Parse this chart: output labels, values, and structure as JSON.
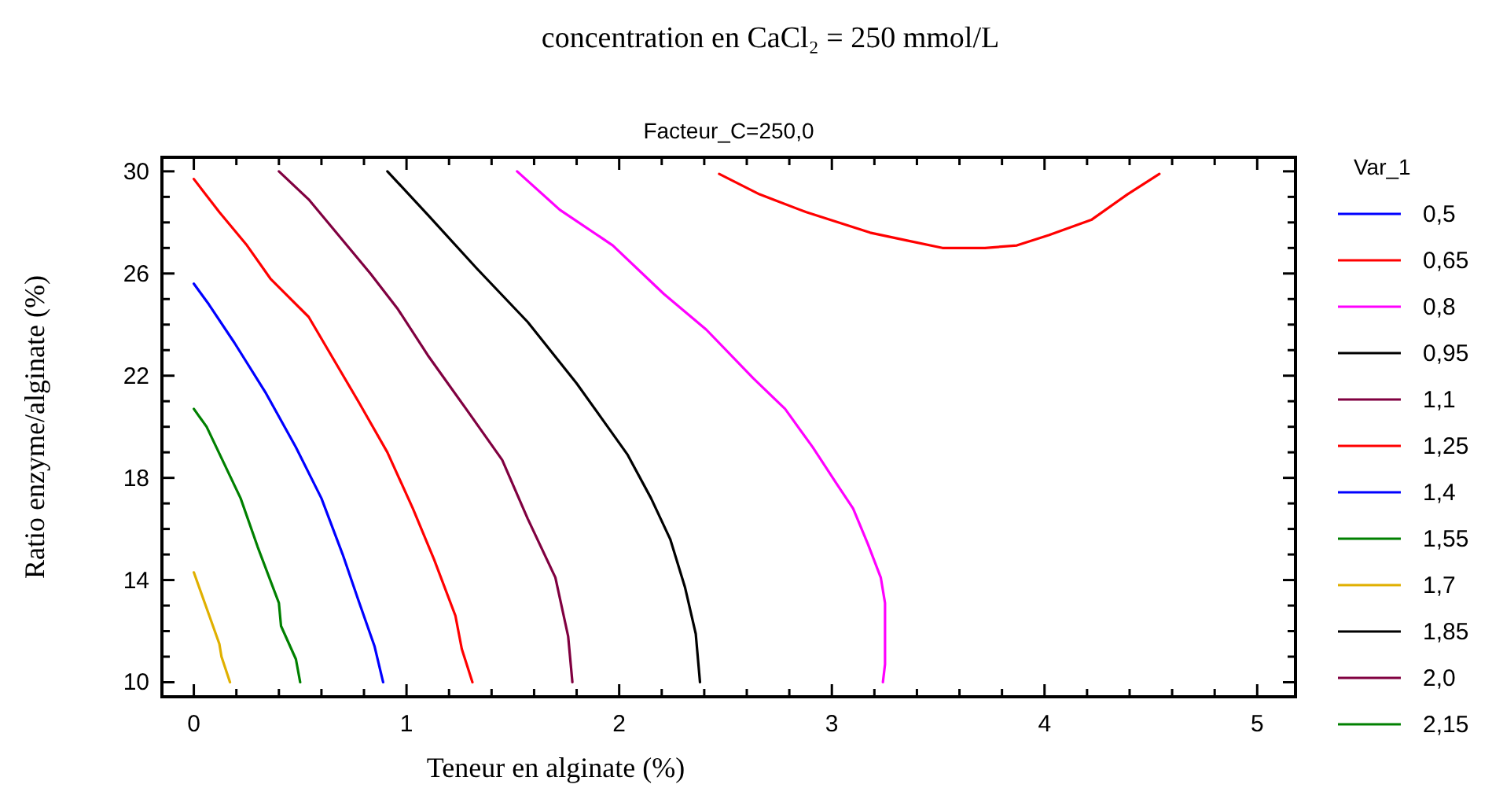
{
  "chart_data": {
    "type": "line",
    "title": "concentration en CaCl₂ = 250 mmol/L",
    "subtitle": "Facteur_C=250,0",
    "xlabel": "Teneur en alginate (%)",
    "ylabel": "Ratio enzyme/alginate (%)",
    "legend_title": "Var_1",
    "legend": "right",
    "grid": false,
    "marker": "none",
    "line_style": "solid",
    "xlim": [
      -0.15,
      5.18
    ],
    "ylim": [
      9.43,
      30.55
    ],
    "xticks": [
      0,
      {
        "value": 0.2,
        "label": null
      },
      {
        "value": 0.4,
        "label": null
      },
      {
        "value": 0.6,
        "label": null
      },
      {
        "value": 0.8,
        "label": null
      },
      1,
      {
        "value": 1.2,
        "label": null
      },
      {
        "value": 1.4,
        "label": null
      },
      {
        "value": 1.6,
        "label": null
      },
      {
        "value": 1.8,
        "label": null
      },
      2,
      {
        "value": 2.2,
        "label": null
      },
      {
        "value": 2.4,
        "label": null
      },
      {
        "value": 2.6,
        "label": null
      },
      {
        "value": 2.8,
        "label": null
      },
      3,
      {
        "value": 3.2,
        "label": null
      },
      {
        "value": 3.4,
        "label": null
      },
      {
        "value": 3.6,
        "label": null
      },
      {
        "value": 3.8,
        "label": null
      },
      4,
      {
        "value": 4.2,
        "label": null
      },
      {
        "value": 4.4,
        "label": null
      },
      {
        "value": 4.6,
        "label": null
      },
      {
        "value": 4.8,
        "label": null
      },
      5
    ],
    "yticks": [
      10,
      {
        "value": 11,
        "label": null
      },
      {
        "value": 12,
        "label": null
      },
      {
        "value": 13,
        "label": null
      },
      14,
      {
        "value": 15,
        "label": null
      },
      {
        "value": 16,
        "label": null
      },
      {
        "value": 17,
        "label": null
      },
      18,
      {
        "value": 19,
        "label": null
      },
      {
        "value": 20,
        "label": null
      },
      {
        "value": 21,
        "label": null
      },
      22,
      {
        "value": 23,
        "label": null
      },
      {
        "value": 24,
        "label": null
      },
      {
        "value": 25,
        "label": null
      },
      26,
      {
        "value": 27,
        "label": null
      },
      {
        "value": 28,
        "label": null
      },
      {
        "value": 29,
        "label": null
      },
      30
    ],
    "series": [
      {
        "name": "0,5",
        "color": "#0000ff"
      },
      {
        "name": "0,65",
        "color": "#ff0000",
        "x": [
          2.47,
          2.66,
          2.88,
          3.18,
          3.35,
          3.52,
          3.72,
          3.87,
          4.02,
          4.22,
          4.39,
          4.54
        ],
        "values": [
          29.9,
          29.1,
          28.4,
          27.6,
          27.3,
          27.0,
          27.0,
          27.1,
          27.5,
          28.1,
          29.1,
          29.9
        ]
      },
      {
        "name": "0,8",
        "color": "#ff00ff",
        "x": [
          1.52,
          1.72,
          1.97,
          2.21,
          2.41,
          2.63,
          2.78,
          2.91,
          3.02,
          3.1,
          3.17,
          3.23,
          3.25,
          3.25,
          3.24
        ],
        "values": [
          30.0,
          28.5,
          27.1,
          25.2,
          23.8,
          21.9,
          20.7,
          19.2,
          17.8,
          16.8,
          15.4,
          14.1,
          13.1,
          10.7,
          10.0
        ]
      },
      {
        "name": "0,95",
        "color": "#000000",
        "x": [
          0.91,
          1.1,
          1.33,
          1.57,
          1.8,
          1.92,
          2.04,
          2.15,
          2.24,
          2.31,
          2.36,
          2.38
        ],
        "values": [
          30.0,
          28.3,
          26.2,
          24.1,
          21.7,
          20.3,
          18.9,
          17.2,
          15.6,
          13.7,
          11.9,
          10.0
        ]
      },
      {
        "name": "1,1",
        "color": "#800040",
        "x": [
          0.4,
          0.54,
          0.68,
          0.83,
          0.96,
          1.1,
          1.28,
          1.45,
          1.57,
          1.7,
          1.76,
          1.78
        ],
        "values": [
          30.0,
          28.9,
          27.5,
          26.0,
          24.6,
          22.8,
          20.7,
          18.7,
          16.4,
          14.1,
          11.8,
          10.0
        ]
      },
      {
        "name": "1,25",
        "color": "#ff0000",
        "x": [
          0,
          0.12,
          0.25,
          0.36,
          0.54,
          0.66,
          0.78,
          0.91,
          1.03,
          1.13,
          1.23,
          1.26,
          1.31
        ],
        "values": [
          29.7,
          28.4,
          27.1,
          25.8,
          24.3,
          22.6,
          20.9,
          19.0,
          16.8,
          14.8,
          12.6,
          11.3,
          10.0
        ]
      },
      {
        "name": "1,4",
        "color": "#0000ff",
        "x": [
          0,
          0.07,
          0.19,
          0.34,
          0.48,
          0.6,
          0.7,
          0.77,
          0.85,
          0.89
        ],
        "values": [
          25.6,
          24.8,
          23.3,
          21.3,
          19.2,
          17.2,
          15.0,
          13.3,
          11.4,
          10.0
        ]
      },
      {
        "name": "1,55",
        "color": "#008000",
        "x": [
          0,
          0.06,
          0.14,
          0.22,
          0.3,
          0.4,
          0.41,
          0.48,
          0.5
        ],
        "values": [
          20.7,
          20.0,
          18.6,
          17.2,
          15.3,
          13.1,
          12.2,
          10.9,
          10.0
        ]
      },
      {
        "name": "1,7",
        "color": "#e0b000",
        "x": [
          0,
          0.06,
          0.12,
          0.13,
          0.17
        ],
        "values": [
          14.3,
          12.9,
          11.5,
          11.0,
          10.0
        ]
      },
      {
        "name": "1,85",
        "color": "#000000"
      },
      {
        "name": "2,0",
        "color": "#800040"
      },
      {
        "name": "2,15",
        "color": "#008000"
      }
    ]
  }
}
